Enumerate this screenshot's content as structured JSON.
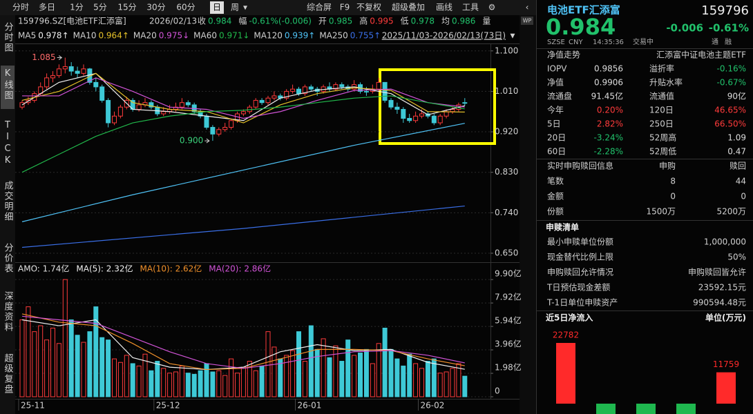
{
  "toolbar": {
    "periods": [
      "分时",
      "多日",
      "1分",
      "5分",
      "15分",
      "30分",
      "60分",
      "日",
      "周"
    ],
    "active_period": "日",
    "tools": [
      "综合屏",
      "F9",
      "不复权",
      "超级叠加",
      "画线",
      "工具"
    ]
  },
  "side_tabs": [
    "分时图",
    "K线图",
    "TICK",
    "成交明细",
    "分价表",
    "深度资料",
    "超级复盘"
  ],
  "active_tab": "K线图",
  "info": {
    "symbol": "159796.SZ[电池ETF汇添富]",
    "date": "2026/02/13",
    "fields": [
      {
        "label": "收",
        "value": "0.984",
        "color": "#21c16b"
      },
      {
        "label": "幅",
        "value": "-0.61%(-0.006)",
        "color": "#21c16b"
      },
      {
        "label": "开",
        "value": "0.985",
        "color": "#21c16b"
      },
      {
        "label": "高",
        "value": "0.995",
        "color": "#ff3b3b"
      },
      {
        "label": "低",
        "value": "0.978",
        "color": "#21c16b"
      },
      {
        "label": "均",
        "value": "0.986",
        "color": "#21c16b"
      },
      {
        "label": "量"
      }
    ]
  },
  "range": "2025/11/03-2026/02/13(73日)",
  "chart_data": [
    {
      "type": "candlestick",
      "ylim": [
        0.63,
        1.115
      ],
      "yticks": [
        {
          "value": 1.1,
          "label": "1.100"
        },
        {
          "value": 1.01,
          "label": "1.010"
        },
        {
          "value": 0.92,
          "label": "0.920"
        },
        {
          "value": 0.83,
          "label": "0.830"
        },
        {
          "value": 0.74,
          "label": "0.740"
        },
        {
          "value": 0.65,
          "label": "0.650"
        }
      ],
      "grid": true,
      "up_color": "#ff3b3b",
      "down_color": "#3ec9d6",
      "candles": [
        [
          0.975,
          0.99,
          0.97,
          0.985
        ],
        [
          0.985,
          0.998,
          0.98,
          0.99
        ],
        [
          0.99,
          1.01,
          0.985,
          1.005
        ],
        [
          1.005,
          1.03,
          1.0,
          1.02
        ],
        [
          1.02,
          1.05,
          1.015,
          1.04
        ],
        [
          1.04,
          1.055,
          1.03,
          1.045
        ],
        [
          1.045,
          1.07,
          1.04,
          1.06
        ],
        [
          1.06,
          1.085,
          1.05,
          1.065
        ],
        [
          1.065,
          1.075,
          1.045,
          1.055
        ],
        [
          1.055,
          1.065,
          1.04,
          1.05
        ],
        [
          1.05,
          1.07,
          1.045,
          1.06
        ],
        [
          1.06,
          1.062,
          1.025,
          1.03
        ],
        [
          1.03,
          1.04,
          1.01,
          1.02
        ],
        [
          1.02,
          1.025,
          0.985,
          0.99
        ],
        [
          0.99,
          0.995,
          0.93,
          0.94
        ],
        [
          0.94,
          0.965,
          0.935,
          0.955
        ],
        [
          0.955,
          0.98,
          0.95,
          0.975
        ],
        [
          0.975,
          0.998,
          0.97,
          0.99
        ],
        [
          0.99,
          0.995,
          0.965,
          0.97
        ],
        [
          0.97,
          0.99,
          0.965,
          0.98
        ],
        [
          0.98,
          0.995,
          0.975,
          0.985
        ],
        [
          0.985,
          0.99,
          0.97,
          0.975
        ],
        [
          0.975,
          0.98,
          0.955,
          0.96
        ],
        [
          0.96,
          0.975,
          0.955,
          0.965
        ],
        [
          0.965,
          0.98,
          0.96,
          0.97
        ],
        [
          0.97,
          0.985,
          0.965,
          0.975
        ],
        [
          0.975,
          0.995,
          0.97,
          0.985
        ],
        [
          0.985,
          0.99,
          0.975,
          0.98
        ],
        [
          0.98,
          0.985,
          0.96,
          0.965
        ],
        [
          0.965,
          0.97,
          0.95,
          0.955
        ],
        [
          0.955,
          0.96,
          0.925,
          0.93
        ],
        [
          0.93,
          0.935,
          0.9,
          0.915
        ],
        [
          0.915,
          0.93,
          0.91,
          0.925
        ],
        [
          0.925,
          0.94,
          0.92,
          0.93
        ],
        [
          0.93,
          0.95,
          0.925,
          0.945
        ],
        [
          0.945,
          0.965,
          0.94,
          0.96
        ],
        [
          0.96,
          0.97,
          0.955,
          0.965
        ],
        [
          0.965,
          0.98,
          0.96,
          0.975
        ],
        [
          0.975,
          0.995,
          0.97,
          0.99
        ],
        [
          0.99,
          0.995,
          0.98,
          0.985
        ],
        [
          0.985,
          1.0,
          0.98,
          0.995
        ],
        [
          0.995,
          1.01,
          0.99,
          1.0
        ],
        [
          1.0,
          1.005,
          0.99,
          0.995
        ],
        [
          0.995,
          1.015,
          0.99,
          1.01
        ],
        [
          1.01,
          1.025,
          1.005,
          1.015
        ],
        [
          1.015,
          1.02,
          1.0,
          1.005
        ],
        [
          1.005,
          1.025,
          1.0,
          1.02
        ],
        [
          1.02,
          1.025,
          1.01,
          1.015
        ],
        [
          1.015,
          1.02,
          1.0,
          1.01
        ],
        [
          1.01,
          1.025,
          1.005,
          1.02
        ],
        [
          1.02,
          1.03,
          1.01,
          1.015
        ],
        [
          1.015,
          1.03,
          1.01,
          1.025
        ],
        [
          1.025,
          1.03,
          1.015,
          1.02
        ],
        [
          1.02,
          1.025,
          1.01,
          1.015
        ],
        [
          1.015,
          1.035,
          1.01,
          1.025
        ],
        [
          1.025,
          1.03,
          1.005,
          1.01
        ],
        [
          1.01,
          1.02,
          1.0,
          1.01
        ],
        [
          1.01,
          1.025,
          1.005,
          1.015
        ],
        [
          1.015,
          1.04,
          1.01,
          1.03
        ],
        [
          1.03,
          1.03,
          0.985,
          0.99
        ],
        [
          0.99,
          0.995,
          0.97,
          0.975
        ],
        [
          0.975,
          0.985,
          0.96,
          0.97
        ],
        [
          0.97,
          0.975,
          0.94,
          0.95
        ],
        [
          0.95,
          0.96,
          0.94,
          0.945
        ],
        [
          0.945,
          0.965,
          0.94,
          0.955
        ],
        [
          0.955,
          0.97,
          0.95,
          0.96
        ],
        [
          0.96,
          0.965,
          0.95,
          0.955
        ],
        [
          0.955,
          0.96,
          0.935,
          0.94
        ],
        [
          0.94,
          0.96,
          0.935,
          0.955
        ],
        [
          0.955,
          0.97,
          0.95,
          0.965
        ],
        [
          0.965,
          0.975,
          0.96,
          0.97
        ],
        [
          0.97,
          0.985,
          0.965,
          0.98
        ],
        [
          0.985,
          0.995,
          0.978,
          0.984
        ]
      ],
      "series": [
        {
          "name": "MA5",
          "color": "#f0f0f0",
          "legend_value": 0.978,
          "trend": "↑",
          "x": [
            0,
            6,
            12,
            18,
            24,
            30,
            36,
            42,
            48,
            54,
            60,
            66,
            72
          ],
          "values": [
            0.98,
            1.03,
            1.05,
            0.97,
            0.965,
            0.955,
            0.945,
            0.995,
            1.013,
            1.02,
            1.005,
            0.958,
            0.978
          ]
        },
        {
          "name": "MA10",
          "color": "#e6c229",
          "legend_value": 0.964,
          "trend": "↑",
          "x": [
            0,
            6,
            12,
            18,
            24,
            30,
            36,
            42,
            48,
            54,
            60,
            66,
            72
          ],
          "values": [
            0.99,
            1.01,
            1.05,
            0.985,
            0.97,
            0.965,
            0.94,
            0.98,
            1.005,
            1.018,
            1.012,
            0.965,
            0.964
          ]
        },
        {
          "name": "MA20",
          "color": "#d254d8",
          "legend_value": 0.975,
          "trend": "↓",
          "x": [
            0,
            6,
            12,
            18,
            24,
            30,
            36,
            42,
            48,
            54,
            60,
            66,
            72
          ],
          "values": [
            1.0,
            1.0,
            1.04,
            1.01,
            0.975,
            0.97,
            0.95,
            0.965,
            0.99,
            1.012,
            1.015,
            0.985,
            0.975
          ]
        },
        {
          "name": "MA60",
          "color": "#21b84b",
          "legend_value": 0.971,
          "trend": "↓",
          "x": [
            0,
            6,
            12,
            18,
            24,
            30,
            36,
            42,
            48,
            54,
            60,
            66,
            72
          ],
          "values": [
            0.83,
            0.87,
            0.91,
            0.94,
            0.955,
            0.965,
            0.968,
            0.975,
            0.985,
            0.995,
            1.0,
            0.985,
            0.971
          ]
        },
        {
          "name": "MA120",
          "color": "#4fc3f7",
          "legend_value": 0.939,
          "trend": "↑",
          "x": [
            0,
            18,
            36,
            54,
            72
          ],
          "values": [
            0.72,
            0.78,
            0.835,
            0.89,
            0.939
          ]
        },
        {
          "name": "MA250",
          "color": "#3a6fe8",
          "legend_value": 0.755,
          "trend": "↑",
          "x": [
            0,
            36,
            72
          ],
          "values": [
            0.663,
            0.705,
            0.755
          ]
        }
      ],
      "annotations": [
        {
          "label": "1.085",
          "value": 1.085,
          "index": 7,
          "side": "left"
        },
        {
          "label": "0.900",
          "value": 0.9,
          "index": 31,
          "side": "left"
        }
      ]
    },
    {
      "type": "bar",
      "ylim": [
        0,
        10.2
      ],
      "yticks": [
        {
          "value": 9.9,
          "label": "9.90亿"
        },
        {
          "value": 7.92,
          "label": "7.92亿"
        },
        {
          "value": 5.94,
          "label": "5.94亿"
        },
        {
          "value": 3.96,
          "label": "3.96亿"
        },
        {
          "value": 1.98,
          "label": "1.98亿"
        },
        0
      ],
      "categories": [
        "25-11",
        null,
        null,
        null,
        null,
        null,
        null,
        null,
        null,
        null,
        null,
        null,
        null,
        null,
        null,
        null,
        null,
        null,
        null,
        null,
        null,
        null,
        "25-12",
        null,
        null,
        null,
        null,
        null,
        null,
        null,
        null,
        null,
        null,
        null,
        null,
        null,
        null,
        null,
        null,
        null,
        null,
        null,
        null,
        null,
        null,
        "26-01",
        null,
        null,
        null,
        null,
        null,
        null,
        null,
        null,
        null,
        null,
        null,
        null,
        null,
        null,
        null,
        null,
        null,
        null,
        null,
        "26-02",
        null,
        null,
        null,
        null,
        null,
        null,
        null
      ],
      "values": [
        6.5,
        7.6,
        5.5,
        6.0,
        4.8,
        5.8,
        4.5,
        9.9,
        6.5,
        5.2,
        4.6,
        5.5,
        7.6,
        5.0,
        4.8,
        3.2,
        2.9,
        3.5,
        2.8,
        2.6,
        3.6,
        2.2,
        3.0,
        2.4,
        2.0,
        2.1,
        2.6,
        2.0,
        1.9,
        2.2,
        2.8,
        2.1,
        2.2,
        1.8,
        3.2,
        2.0,
        2.5,
        3.0,
        2.2,
        2.6,
        5.5,
        4.2,
        3.2,
        3.5,
        3.9,
        5.5,
        3.0,
        6.0,
        4.0,
        4.9,
        3.3,
        4.3,
        3.0,
        4.8,
        3.5,
        3.7,
        4.0,
        2.8,
        4.5,
        5.8,
        4.0,
        3.2,
        2.6,
        3.6,
        2.8,
        2.4,
        3.0,
        3.2,
        2.0,
        2.1,
        2.4,
        2.8,
        1.74
      ],
      "legend": {
        "text": "AMO: 1.74亿",
        "color": "#e0e0e0"
      },
      "series": [
        {
          "legend": "MA(5): 2.32亿",
          "color": "#f0f0f0",
          "x": [
            0,
            6,
            12,
            18,
            24,
            30,
            36,
            42,
            48,
            54,
            60,
            66,
            72
          ],
          "values": [
            6.5,
            6.0,
            6.5,
            3.3,
            2.5,
            2.3,
            2.5,
            3.8,
            4.4,
            3.9,
            4.0,
            2.9,
            2.32
          ]
        },
        {
          "legend": "MA(10): 2.62亿",
          "color": "#f0902a",
          "x": [
            0,
            6,
            12,
            18,
            24,
            30,
            36,
            42,
            48,
            54,
            60,
            66,
            72
          ],
          "values": [
            7.0,
            6.3,
            6.0,
            4.5,
            2.8,
            2.3,
            2.4,
            3.2,
            4.0,
            4.0,
            3.9,
            3.2,
            2.62
          ]
        },
        {
          "legend": "MA(20): 2.86亿",
          "color": "#d254d8",
          "x": [
            0,
            6,
            12,
            18,
            24,
            30,
            36,
            42,
            48,
            54,
            60,
            66,
            72
          ],
          "values": [
            6.8,
            6.5,
            6.2,
            5.0,
            3.8,
            2.8,
            2.4,
            2.8,
            3.4,
            3.8,
            3.9,
            3.5,
            2.86
          ]
        }
      ]
    },
    {
      "type": "bar",
      "title": "近5日净流入",
      "unit": "单位(万元)",
      "up_color": "#ff2a2a",
      "down_color": "#1fb84f",
      "values": [
        22782,
        -4000,
        -4000,
        -4000,
        11759
      ],
      "value_labels": [
        "22782",
        null,
        null,
        null,
        "11759"
      ]
    }
  ],
  "quote": {
    "name": "电池ETF汇添富",
    "code": "159796",
    "price": "0.984",
    "change": "-0.006",
    "pct": "-0.61%",
    "meta": [
      "SZSE",
      "CNY",
      "14:35:36",
      "交易中"
    ],
    "badges": [
      "通",
      "融"
    ]
  },
  "fund": {
    "title": "净值走势",
    "fund_name": "汇添富中证电池主题ETF",
    "rows": [
      [
        "IOPV",
        "0.9856",
        "溢折率",
        "-0.16%"
      ],
      [
        "净值",
        "0.9906",
        "升贴水率",
        "-0.67%"
      ],
      [
        "流通盘",
        "91.45亿",
        "流通值",
        "90亿"
      ],
      [
        "今年",
        "0.20%",
        "120日",
        "46.65%"
      ],
      [
        "5日",
        "2.82%",
        "250日",
        "66.50%"
      ],
      [
        "20日",
        "-3.24%",
        "52周高",
        "1.09"
      ],
      [
        "60日",
        "-2.28%",
        "52周低",
        "0.47"
      ]
    ]
  },
  "creation": {
    "title": "实时申购赎回信息",
    "columns": [
      "申购",
      "赎回"
    ],
    "rows": [
      [
        "笔数",
        "8",
        "44"
      ],
      [
        "金额",
        "0",
        "0"
      ],
      [
        "份额",
        "1500万",
        "5200万"
      ]
    ]
  },
  "basket": {
    "title": "申赎清单",
    "rows": [
      [
        "最小申赎单位份额",
        "1,000,000"
      ],
      [
        "现金替代比例上限",
        "50%"
      ],
      [
        "申购赎回允许情况",
        "申购赎回皆允许"
      ],
      [
        "T日预估现金差额",
        "23592.15元"
      ],
      [
        "T-1日单位申赎资产",
        "990594.48元"
      ]
    ]
  }
}
